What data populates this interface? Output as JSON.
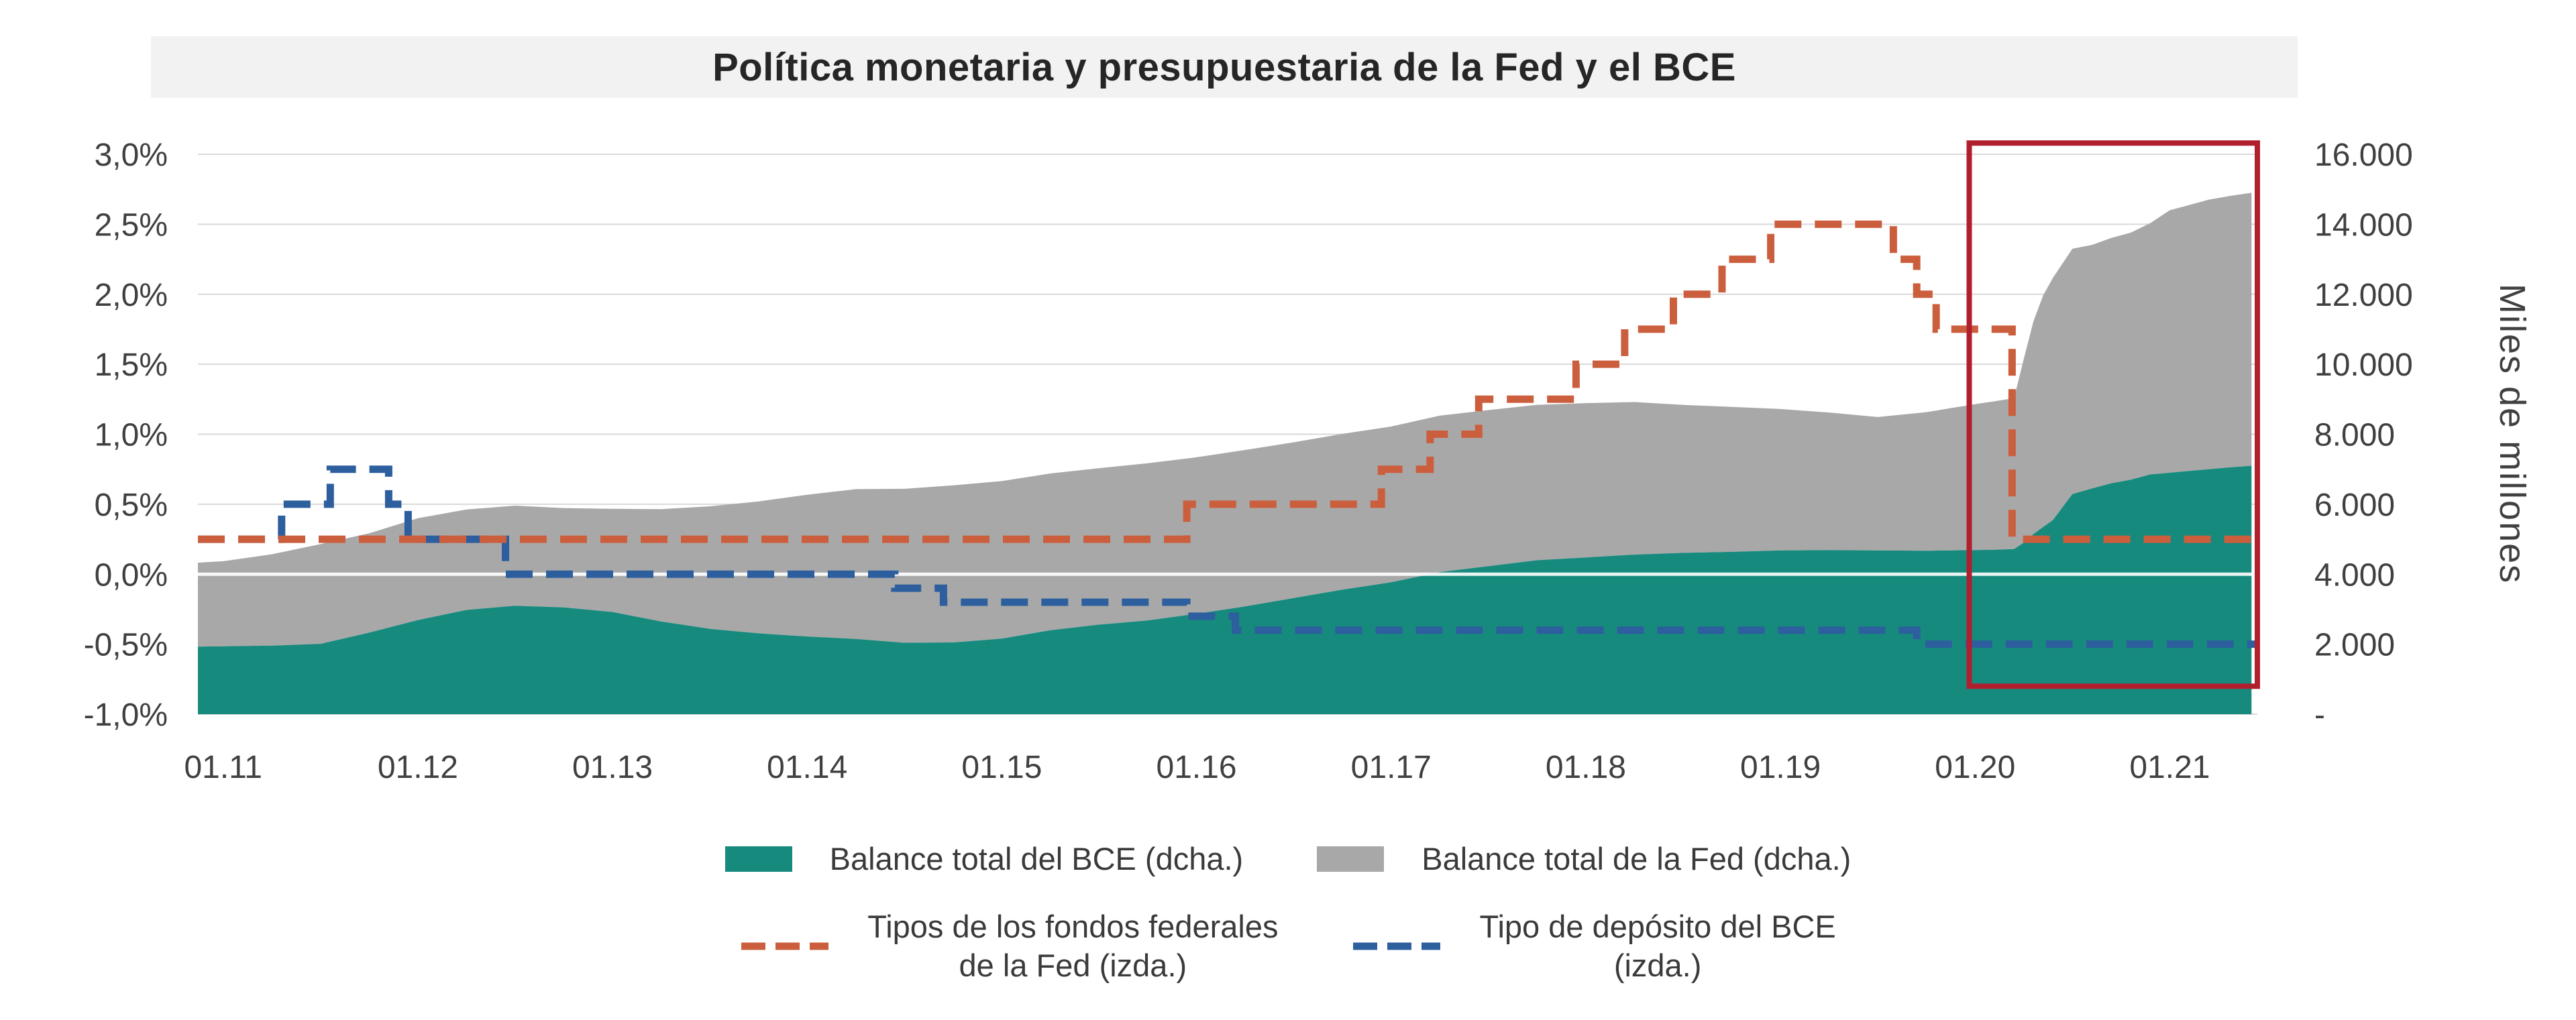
{
  "title": "Política monetaria y presupuestaria de la Fed y el BCE",
  "colors": {
    "ecb_balance": "#178a7e",
    "fed_balance": "#a8a8a8",
    "fed_funds": "#cb5f3d",
    "ecb_deposit": "#2d5f9e",
    "highlight": "#b01f2e",
    "gridline": "#d9d9d9",
    "zero_line": "#ffffff",
    "axis_text": "#404040",
    "title_bg": "#f2f2f2"
  },
  "left_axis": {
    "ticks": [
      "3,0%",
      "2,5%",
      "2,0%",
      "1,5%",
      "1,0%",
      "0,5%",
      "0,0%",
      "-0,5%",
      "-1,0%"
    ]
  },
  "right_axis": {
    "title": "Miles de millones",
    "ticks": [
      "16.000",
      "14.000",
      "12.000",
      "10.000",
      "8.000",
      "6.000",
      "4.000",
      "2.000",
      "-"
    ]
  },
  "x_axis": {
    "ticks": [
      "01.11",
      "01.12",
      "01.13",
      "01.14",
      "01.15",
      "01.16",
      "01.17",
      "01.18",
      "01.19",
      "01.20",
      "01.21"
    ]
  },
  "legend": {
    "items": [
      {
        "label": "Balance total del BCE (dcha.)"
      },
      {
        "label": "Balance total de la Fed (dcha.)"
      },
      {
        "label_lines": [
          "Tipos de los fondos federales",
          "de la Fed (izda.)"
        ]
      },
      {
        "label_lines": [
          "Tipo de depósito del BCE",
          "(izda.)"
        ]
      }
    ]
  },
  "chart_data": {
    "type": "combo",
    "subtype": "stacked-area (right axis) + dashed step lines (left axis)",
    "title": "Política monetaria y presupuestaria de la Fed y el BCE",
    "x_min": 2010.87,
    "x_max": 2021.45,
    "x_tick_years": [
      2011,
      2012,
      2013,
      2014,
      2015,
      2016,
      2017,
      2018,
      2019,
      2020,
      2021
    ],
    "pct_min": -1.0,
    "pct_max": 3.0,
    "val_max": 16000,
    "left_axis_range_pct": [
      -1.0,
      3.0
    ],
    "right_axis_range": [
      0,
      16000
    ],
    "grid": true,
    "legend_position": "bottom",
    "balances": {
      "unit": "miles de millones",
      "stacking": "ecb at bottom, fed stacked on top",
      "x": [
        2010.87,
        2011.0,
        2011.25,
        2011.5,
        2011.75,
        2012.0,
        2012.25,
        2012.5,
        2012.75,
        2013.0,
        2013.25,
        2013.5,
        2013.75,
        2014.0,
        2014.25,
        2014.5,
        2014.75,
        2015.0,
        2015.25,
        2015.5,
        2015.75,
        2016.0,
        2016.25,
        2016.5,
        2016.75,
        2017.0,
        2017.25,
        2017.5,
        2017.75,
        2018.0,
        2018.25,
        2018.5,
        2018.75,
        2019.0,
        2019.25,
        2019.5,
        2019.75,
        2020.0,
        2020.1,
        2020.2,
        2020.25,
        2020.3,
        2020.35,
        2020.4,
        2020.5,
        2020.6,
        2020.7,
        2020.8,
        2020.9,
        2021.0,
        2021.1,
        2021.2,
        2021.3,
        2021.42
      ],
      "ecb": [
        1930,
        1940,
        1960,
        2010,
        2330,
        2690,
        2980,
        3100,
        3050,
        2920,
        2650,
        2440,
        2310,
        2220,
        2150,
        2040,
        2050,
        2160,
        2400,
        2560,
        2680,
        2870,
        3080,
        3320,
        3560,
        3770,
        4060,
        4230,
        4400,
        4480,
        4560,
        4610,
        4640,
        4680,
        4690,
        4680,
        4670,
        4690,
        4700,
        4720,
        4900,
        5150,
        5350,
        5550,
        6290,
        6450,
        6600,
        6700,
        6850,
        6900,
        6950,
        7000,
        7050,
        7100
      ],
      "fed": [
        2400,
        2430,
        2610,
        2850,
        2840,
        2910,
        2870,
        2860,
        2840,
        2950,
        3210,
        3500,
        3770,
        4050,
        4280,
        4400,
        4490,
        4500,
        4480,
        4470,
        4490,
        4470,
        4470,
        4450,
        4450,
        4450,
        4470,
        4460,
        4440,
        4410,
        4360,
        4230,
        4140,
        4040,
        3930,
        3810,
        3960,
        4170,
        4240,
        4310,
        5250,
        6080,
        6620,
        6920,
        7010,
        6960,
        7010,
        7060,
        7180,
        7500,
        7600,
        7700,
        7750,
        7800
      ]
    },
    "fed_funds_steps": [
      [
        2010.87,
        0.25
      ],
      [
        2015.95,
        0.5
      ],
      [
        2016.95,
        0.75
      ],
      [
        2017.2,
        1.0
      ],
      [
        2017.45,
        1.25
      ],
      [
        2017.95,
        1.5
      ],
      [
        2018.2,
        1.75
      ],
      [
        2018.45,
        2.0
      ],
      [
        2018.7,
        2.25
      ],
      [
        2018.95,
        2.5
      ],
      [
        2019.58,
        2.25
      ],
      [
        2019.7,
        2.0
      ],
      [
        2019.8,
        1.75
      ],
      [
        2020.19,
        0.25
      ]
    ],
    "ecb_deposit_steps": [
      [
        2010.87,
        0.25
      ],
      [
        2011.3,
        0.5
      ],
      [
        2011.55,
        0.75
      ],
      [
        2011.85,
        0.5
      ],
      [
        2011.95,
        0.25
      ],
      [
        2012.45,
        0.0
      ],
      [
        2014.45,
        -0.1
      ],
      [
        2014.7,
        -0.2
      ],
      [
        2015.95,
        -0.3
      ],
      [
        2016.2,
        -0.4
      ],
      [
        2019.7,
        -0.5
      ]
    ],
    "highlight_box": {
      "t_start": 2019.97,
      "t_end": 2021.45,
      "pct_top": 3.08,
      "pct_bottom": -0.8
    }
  }
}
